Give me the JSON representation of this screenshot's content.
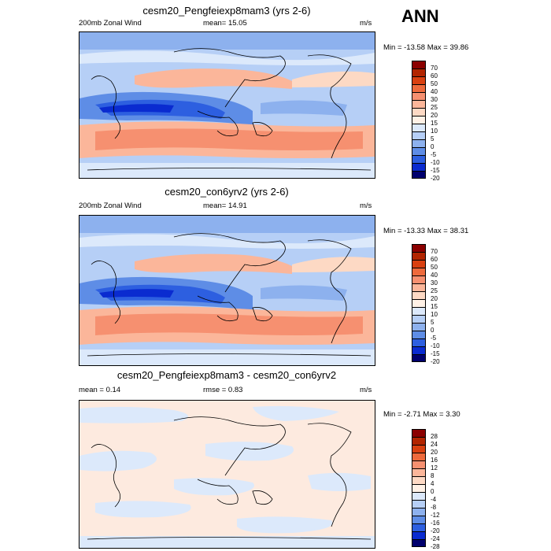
{
  "season": "ANN",
  "colors": {
    "top_scale": [
      "#8b0000",
      "#b22500",
      "#d94010",
      "#ee6a3c",
      "#f69070",
      "#fbb69a",
      "#fdd9c4",
      "#fff1e6",
      "#dce9fb",
      "#b6cff6",
      "#8db1ee",
      "#5e8de6",
      "#2d5fe0",
      "#0a2bd0",
      "#00006e"
    ],
    "diff_scale": [
      "#8b0000",
      "#b22500",
      "#d94010",
      "#ee6a3c",
      "#f69070",
      "#fbb69a",
      "#fdd9c4",
      "#fff1e6",
      "#dce9fb",
      "#b6cff6",
      "#8db1ee",
      "#5e8de6",
      "#2d5fe0",
      "#0a2bd0",
      "#00006e"
    ]
  },
  "chart_data": [
    {
      "type": "heatmap",
      "title": "cesm20_Pengfeiexp8mam3 (yrs 2-6)",
      "left_label": "200mb Zonal Wind",
      "center_label": "mean=  15.05",
      "right_label": "m/s",
      "min_label": "Min = -13.58 Max =  39.86",
      "min": -13.58,
      "max": 39.86,
      "mean": 15.05,
      "colorbar_levels": [
        "70",
        "60",
        "50",
        "40",
        "30",
        "25",
        "20",
        "15",
        "10",
        "5",
        "0",
        "-5",
        "-10",
        "-15",
        "-20"
      ]
    },
    {
      "type": "heatmap",
      "title": "cesm20_con6yrv2 (yrs 2-6)",
      "left_label": "200mb Zonal Wind",
      "center_label": "mean=  14.91",
      "right_label": "m/s",
      "min_label": "Min = -13.33 Max =  38.31",
      "min": -13.33,
      "max": 38.31,
      "mean": 14.91,
      "colorbar_levels": [
        "70",
        "60",
        "50",
        "40",
        "30",
        "25",
        "20",
        "15",
        "10",
        "5",
        "0",
        "-5",
        "-10",
        "-15",
        "-20"
      ]
    },
    {
      "type": "heatmap",
      "title": "cesm20_Pengfeiexp8mam3 - cesm20_con6yrv2",
      "left_label": "mean =   0.14",
      "center_label": "rmse =   0.83",
      "right_label": "m/s",
      "min_label": "Min = -2.71 Max =   3.30",
      "min": -2.71,
      "max": 3.3,
      "mean": 0.14,
      "rmse": 0.83,
      "colorbar_levels": [
        "28",
        "24",
        "20",
        "16",
        "12",
        "8",
        "4",
        "0",
        "-4",
        "-8",
        "-12",
        "-16",
        "-20",
        "-24",
        "-28"
      ]
    }
  ]
}
